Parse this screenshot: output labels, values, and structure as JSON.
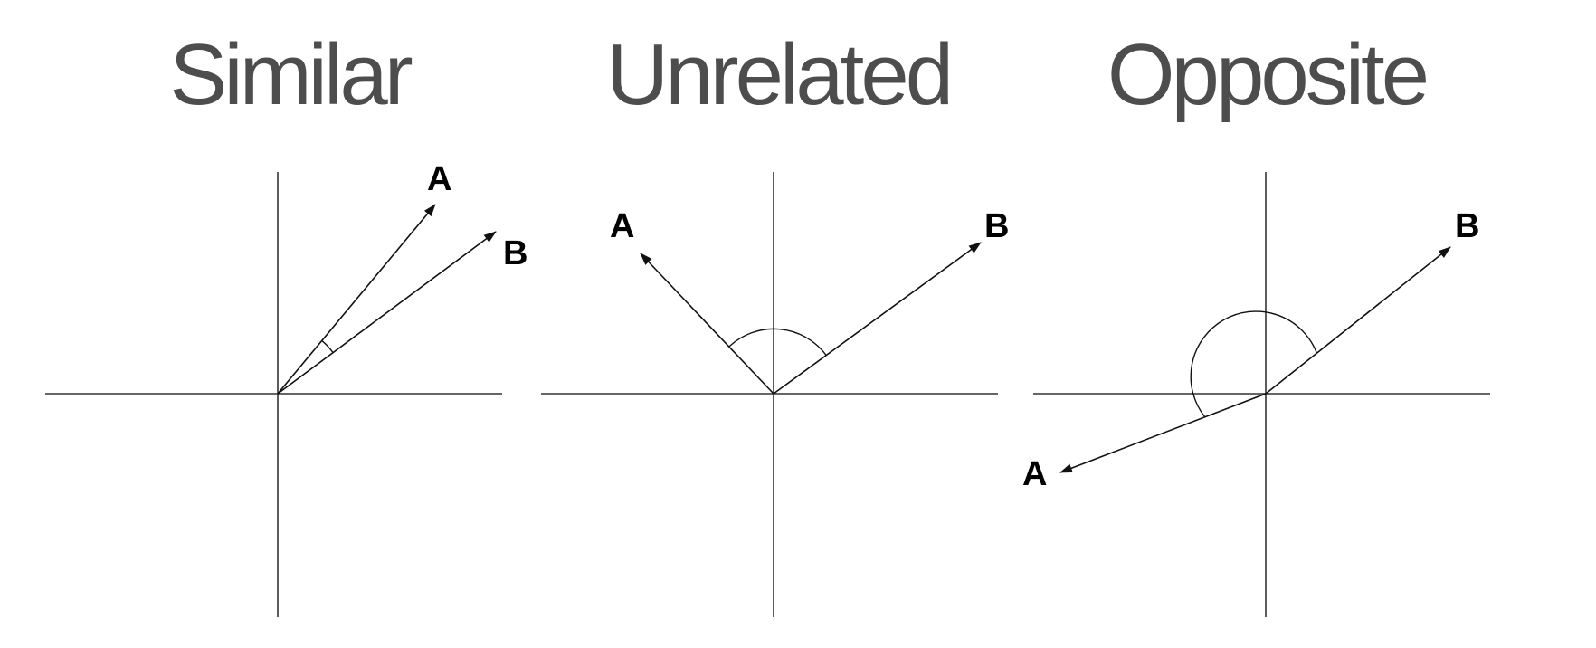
{
  "panels": [
    {
      "title": "Similar",
      "vector_a_label": "A",
      "vector_b_label": "B"
    },
    {
      "title": "Unrelated",
      "vector_a_label": "A",
      "vector_b_label": "B"
    },
    {
      "title": "Opposite",
      "vector_a_label": "A",
      "vector_b_label": "B"
    }
  ],
  "colors": {
    "title": "#4d4d4d",
    "axis": "#333333",
    "vector": "#111111",
    "label": "#000000"
  }
}
